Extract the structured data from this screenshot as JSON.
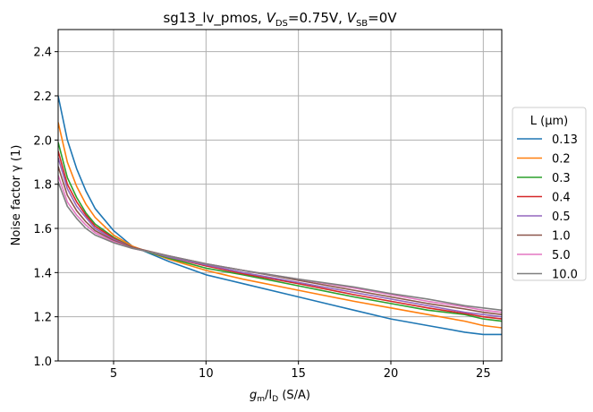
{
  "chart_data": {
    "type": "line",
    "title": {
      "prefix": "sg13_lv_pmos, ",
      "v1": "V",
      "s1": "DS",
      "r1": "=0.75V, ",
      "v2": "V",
      "s2": "SB",
      "r2": "=0V"
    },
    "xlabel": {
      "g": "g",
      "gs": "m",
      "mid": "/I",
      "is": "D",
      "unit": " (S/A)"
    },
    "ylabel": "Noise factor γ (1)",
    "xlim": [
      2,
      26
    ],
    "ylim": [
      1.0,
      2.5
    ],
    "xticks": [
      5,
      10,
      15,
      20,
      25
    ],
    "yticks": [
      1.0,
      1.2,
      1.4,
      1.6,
      1.8,
      2.0,
      2.2,
      2.4
    ],
    "grid": true,
    "legend": {
      "title": "L (µm)",
      "placement": "right-outside"
    },
    "x": [
      2,
      2.5,
      3,
      3.5,
      4,
      5,
      6,
      8,
      10,
      12,
      15,
      18,
      20,
      22,
      24,
      25,
      26
    ],
    "series": [
      {
        "name": "0.13",
        "color": "#1f77b4",
        "values": [
          2.2,
          2.0,
          1.87,
          1.77,
          1.69,
          1.59,
          1.52,
          1.45,
          1.39,
          1.35,
          1.29,
          1.23,
          1.19,
          1.16,
          1.13,
          1.12,
          1.12
        ]
      },
      {
        "name": "0.2",
        "color": "#ff7f0e",
        "values": [
          2.08,
          1.9,
          1.79,
          1.71,
          1.65,
          1.57,
          1.52,
          1.46,
          1.41,
          1.37,
          1.32,
          1.27,
          1.24,
          1.21,
          1.18,
          1.16,
          1.15
        ]
      },
      {
        "name": "0.3",
        "color": "#2ca02c",
        "values": [
          1.99,
          1.83,
          1.74,
          1.67,
          1.62,
          1.56,
          1.515,
          1.465,
          1.42,
          1.39,
          1.34,
          1.29,
          1.26,
          1.23,
          1.21,
          1.19,
          1.18
        ]
      },
      {
        "name": "0.4",
        "color": "#d62728",
        "values": [
          1.95,
          1.8,
          1.72,
          1.66,
          1.61,
          1.555,
          1.515,
          1.47,
          1.43,
          1.395,
          1.35,
          1.3,
          1.27,
          1.24,
          1.215,
          1.2,
          1.19
        ]
      },
      {
        "name": "0.5",
        "color": "#9467bd",
        "values": [
          1.92,
          1.78,
          1.7,
          1.65,
          1.6,
          1.55,
          1.515,
          1.47,
          1.435,
          1.4,
          1.355,
          1.31,
          1.28,
          1.25,
          1.22,
          1.21,
          1.2
        ]
      },
      {
        "name": "1.0",
        "color": "#8c564b",
        "values": [
          1.88,
          1.75,
          1.68,
          1.63,
          1.59,
          1.545,
          1.515,
          1.475,
          1.44,
          1.41,
          1.365,
          1.32,
          1.29,
          1.26,
          1.235,
          1.22,
          1.21
        ]
      },
      {
        "name": "5.0",
        "color": "#e377c2",
        "values": [
          1.84,
          1.72,
          1.66,
          1.615,
          1.58,
          1.54,
          1.51,
          1.475,
          1.44,
          1.41,
          1.37,
          1.33,
          1.3,
          1.27,
          1.245,
          1.23,
          1.22
        ]
      },
      {
        "name": "10.0",
        "color": "#7f7f7f",
        "values": [
          1.81,
          1.7,
          1.645,
          1.6,
          1.57,
          1.535,
          1.51,
          1.475,
          1.44,
          1.41,
          1.37,
          1.335,
          1.305,
          1.28,
          1.25,
          1.24,
          1.23
        ]
      }
    ]
  }
}
